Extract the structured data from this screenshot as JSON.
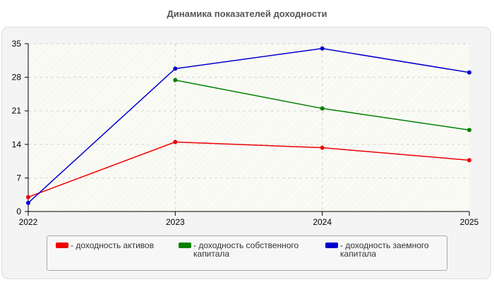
{
  "chart_data": {
    "type": "line",
    "title": "Динамика показателей доходности",
    "x": [
      "2022",
      "2023",
      "2024",
      "2025"
    ],
    "ylim": [
      0,
      35
    ],
    "yticks": [
      "0",
      "7",
      "14",
      "21",
      "28",
      "35"
    ],
    "grid": true,
    "legend_position": "bottom",
    "series": [
      {
        "name": "- доходность активов",
        "color": "#ee0000",
        "values": [
          3.0,
          14.5,
          13.3,
          10.7
        ]
      },
      {
        "name": "- доходность собственного\nкапитала",
        "color": "#008000",
        "values": [
          null,
          27.4,
          21.5,
          17.0
        ]
      },
      {
        "name": "- доходность заемного\nкапитала",
        "color": "#0000cc",
        "values": [
          1.8,
          29.8,
          34.0,
          29.0
        ]
      }
    ]
  }
}
